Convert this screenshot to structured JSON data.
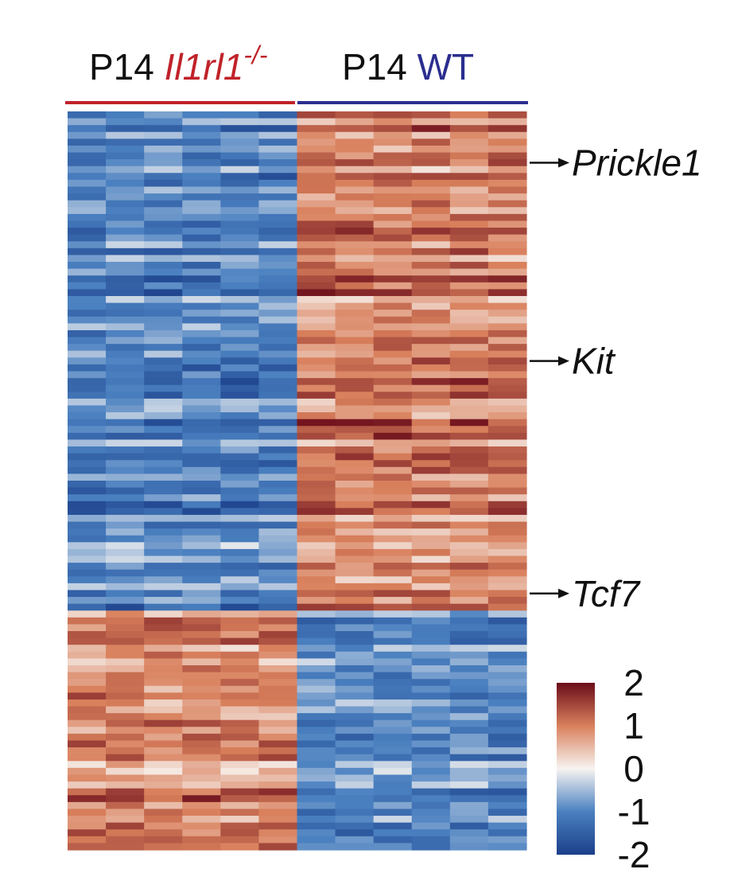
{
  "chart_data": {
    "type": "heatmap",
    "colorscale": {
      "min": -2,
      "max": 2,
      "ticks": [
        2,
        1,
        0,
        -1,
        -2
      ],
      "colors": [
        "#1b3f8a",
        "#4a80c0",
        "#f7f4f1",
        "#d9805c",
        "#6b0c1a"
      ]
    },
    "groups": [
      {
        "prefix": "P14 ",
        "name": "Il1rl1",
        "superscript": "-/-",
        "color": "#c0222a",
        "n_samples": 6
      },
      {
        "prefix": "P14 ",
        "name": "WT",
        "superscript": "",
        "color": "#2b2e8f",
        "n_samples": 6
      }
    ],
    "gene_labels": [
      {
        "label": "Prickle1",
        "row": 7
      },
      {
        "label": "Kit",
        "row": 36
      },
      {
        "label": "Tcf7",
        "row": 70
      }
    ],
    "n_rows": 108,
    "n_up_in_wt": 73,
    "n_down_in_wt": 35
  }
}
